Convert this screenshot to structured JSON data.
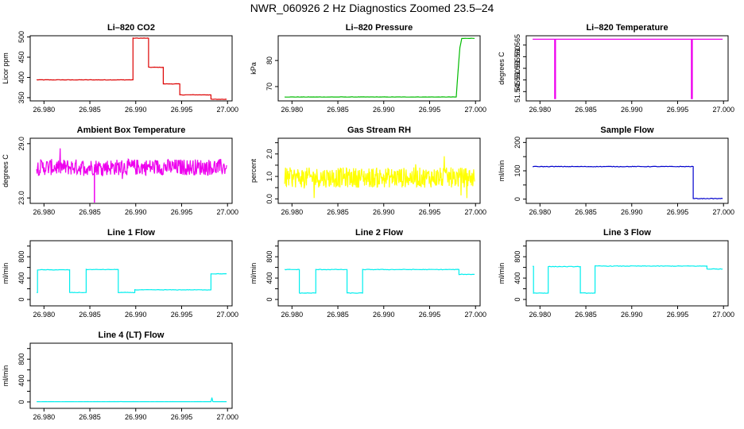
{
  "figure_title": "NWR_060926  2 Hz Diagnostics Zoomed 23.5–24",
  "colors": {
    "red": "#dd0000",
    "green": "#00bb00",
    "magenta": "#ee00ee",
    "yellow": "#ffff00",
    "blue": "#0000cc",
    "cyan": "#00eeee"
  },
  "chart_data": [
    {
      "type": "line",
      "title": "Li–820 CO2",
      "ylabel": "Licor ppm",
      "color": "#dd0000",
      "xlim": [
        26.9785,
        27.0005
      ],
      "ylim": [
        342,
        503
      ],
      "xticks": [
        26.98,
        26.985,
        26.99,
        26.995,
        27.0
      ],
      "xtick_labels": [
        "26.980",
        "26.985",
        "26.990",
        "26.995",
        "27.000"
      ],
      "yticks": [
        350,
        400,
        450,
        500
      ],
      "ytick_labels": [
        "350",
        "400",
        "450",
        "500"
      ],
      "step": true,
      "noise": 1,
      "series": [
        {
          "x": [
            26.9792,
            26.9897,
            26.9914,
            26.993,
            26.9948,
            26.9982,
            26.9999
          ],
          "y": [
            394,
            497,
            425,
            384,
            357,
            346,
            346
          ]
        }
      ]
    },
    {
      "type": "line",
      "title": "Li–820 Pressure",
      "ylabel": "kPa",
      "color": "#00bb00",
      "xlim": [
        26.9785,
        27.0005
      ],
      "ylim": [
        64.5,
        89.5
      ],
      "xticks": [
        26.98,
        26.985,
        26.99,
        26.995,
        27.0
      ],
      "xtick_labels": [
        "26.980",
        "26.985",
        "26.990",
        "26.995",
        "27.000"
      ],
      "yticks": [
        70,
        80
      ],
      "ytick_labels": [
        "70",
        "80"
      ],
      "step": false,
      "noise": 0.1,
      "series": [
        {
          "x": [
            26.9792,
            26.9966,
            26.9979,
            26.9981,
            26.9983,
            26.9985,
            26.9999
          ],
          "y": [
            66,
            66,
            66,
            76,
            85,
            88.5,
            88.5
          ]
        }
      ]
    },
    {
      "type": "line",
      "title": "Li–820 Temperature",
      "ylabel": "degrees C",
      "color": "#ee00ee",
      "xlim": [
        26.9785,
        27.0005
      ],
      "ylim": [
        51.541,
        51.569
      ],
      "xticks": [
        26.98,
        26.985,
        26.99,
        26.995,
        27.0
      ],
      "xtick_labels": [
        "26.980",
        "26.985",
        "26.990",
        "26.995",
        "27.000"
      ],
      "yticks": [
        51.545,
        51.55,
        51.555,
        51.56,
        51.565
      ],
      "ytick_labels": [
        "51.545",
        "51.550",
        "51.555",
        "51.560",
        "51.565"
      ],
      "step": false,
      "noise": 0,
      "series": [
        {
          "x": [
            26.9792,
            26.9816,
            26.9816,
            26.9817,
            26.9817,
            26.9965,
            26.9965,
            26.9966,
            26.9966,
            26.9999
          ],
          "y": [
            51.5675,
            51.5675,
            51.542,
            51.542,
            51.5675,
            51.5675,
            51.542,
            51.542,
            51.5675,
            51.5675
          ]
        }
      ]
    },
    {
      "type": "line",
      "title": "Ambient Box Temperature",
      "ylabel": "degrees C",
      "color": "#ee00ee",
      "xlim": [
        26.9785,
        27.0005
      ],
      "ylim": [
        22.4,
        29.6
      ],
      "xticks": [
        26.98,
        26.985,
        26.99,
        26.995,
        27.0
      ],
      "xtick_labels": [
        "26.980",
        "26.985",
        "26.990",
        "26.995",
        "27.000"
      ],
      "yticks": [
        23.0,
        29.0
      ],
      "ytick_labels": [
        "23.0",
        "29.0"
      ],
      "step": false,
      "noise": 1.8,
      "n_points": 420,
      "series": [
        {
          "x": [
            26.9792,
            26.9999
          ],
          "y": [
            26.4,
            26.4
          ]
        }
      ],
      "spikes": [
        {
          "x": 26.9855,
          "y": 22.4
        }
      ]
    },
    {
      "type": "line",
      "title": "Gas Stream RH",
      "ylabel": "percent",
      "color": "#ffff00",
      "xlim": [
        26.9785,
        27.0005
      ],
      "ylim": [
        -0.2,
        2.7
      ],
      "xticks": [
        26.98,
        26.985,
        26.99,
        26.995,
        27.0
      ],
      "xtick_labels": [
        "26.980",
        "26.985",
        "26.990",
        "26.995",
        "27.000"
      ],
      "yticks": [
        0.0,
        0.5,
        1.0,
        1.5,
        2.0,
        2.5
      ],
      "ytick_labels": [
        "0.0",
        "",
        "1.0",
        "",
        "2.0",
        ""
      ],
      "step": false,
      "noise": 0.9,
      "n_points": 420,
      "series": [
        {
          "x": [
            26.9792,
            26.9999
          ],
          "y": [
            0.95,
            0.95
          ]
        }
      ]
    },
    {
      "type": "line",
      "title": "Sample Flow",
      "ylabel": "ml/min",
      "color": "#0000cc",
      "xlim": [
        26.9785,
        27.0005
      ],
      "ylim": [
        -15,
        215
      ],
      "xticks": [
        26.98,
        26.985,
        26.99,
        26.995,
        27.0
      ],
      "xtick_labels": [
        "26.980",
        "26.985",
        "26.990",
        "26.995",
        "27.000"
      ],
      "yticks": [
        0,
        50,
        100,
        150,
        200
      ],
      "ytick_labels": [
        "0",
        "",
        "100",
        "",
        "200"
      ],
      "step": true,
      "noise": 2,
      "series": [
        {
          "x": [
            26.9792,
            26.9967,
            26.9999
          ],
          "y": [
            115,
            2,
            2
          ]
        }
      ]
    },
    {
      "type": "line",
      "title": "Line 1 Flow",
      "ylabel": "ml/min",
      "color": "#00eeee",
      "xlim": [
        26.9785,
        27.0005
      ],
      "ylim": [
        -120,
        1100
      ],
      "xticks": [
        26.98,
        26.985,
        26.99,
        26.995,
        27.0
      ],
      "xtick_labels": [
        "26.980",
        "26.985",
        "26.990",
        "26.995",
        "27.000"
      ],
      "yticks": [
        0,
        200,
        400,
        600,
        800,
        1000
      ],
      "ytick_labels": [
        "0",
        "",
        "400",
        "",
        "800",
        ""
      ],
      "step": true,
      "noise": 8,
      "series": [
        {
          "x": [
            26.9792,
            26.9793,
            26.9828,
            26.9846,
            26.9881,
            26.9899,
            26.9982,
            26.9999
          ],
          "y": [
            130,
            555,
            130,
            560,
            130,
            180,
            480,
            480
          ]
        }
      ]
    },
    {
      "type": "line",
      "title": "Line 2 Flow",
      "ylabel": "ml/min",
      "color": "#00eeee",
      "xlim": [
        26.9785,
        27.0005
      ],
      "ylim": [
        -120,
        1100
      ],
      "xticks": [
        26.98,
        26.985,
        26.99,
        26.995,
        27.0
      ],
      "xtick_labels": [
        "26.980",
        "26.985",
        "26.990",
        "26.995",
        "27.000"
      ],
      "yticks": [
        0,
        200,
        400,
        600,
        800,
        1000
      ],
      "ytick_labels": [
        "0",
        "",
        "400",
        "",
        "800",
        ""
      ],
      "step": true,
      "noise": 10,
      "series": [
        {
          "x": [
            26.9792,
            26.9808,
            26.9826,
            26.986,
            26.9877,
            26.9982,
            26.9999
          ],
          "y": [
            560,
            120,
            560,
            120,
            560,
            470,
            470
          ]
        }
      ]
    },
    {
      "type": "line",
      "title": "Line 3 Flow",
      "ylabel": "ml/min",
      "color": "#00eeee",
      "xlim": [
        26.9785,
        27.0005
      ],
      "ylim": [
        -120,
        1100
      ],
      "xticks": [
        26.98,
        26.985,
        26.99,
        26.995,
        27.0
      ],
      "xtick_labels": [
        "26.980",
        "26.985",
        "26.990",
        "26.995",
        "27.000"
      ],
      "yticks": [
        0,
        200,
        400,
        600,
        800,
        1000
      ],
      "ytick_labels": [
        "0",
        "",
        "400",
        "",
        "800",
        ""
      ],
      "step": true,
      "noise": 10,
      "series": [
        {
          "x": [
            26.9792,
            26.9793,
            26.9809,
            26.9844,
            26.986,
            26.9982,
            26.9999
          ],
          "y": [
            620,
            120,
            615,
            120,
            625,
            570,
            570
          ]
        }
      ]
    },
    {
      "type": "line",
      "title": "Line 4 (LT) Flow",
      "ylabel": "ml/min",
      "color": "#00eeee",
      "xlim": [
        26.9785,
        27.0005
      ],
      "ylim": [
        -120,
        1100
      ],
      "xticks": [
        26.98,
        26.985,
        26.99,
        26.995,
        27.0
      ],
      "xtick_labels": [
        "26.980",
        "26.985",
        "26.990",
        "26.995",
        "27.000"
      ],
      "yticks": [
        0,
        200,
        400,
        600,
        800,
        1000
      ],
      "ytick_labels": [
        "0",
        "",
        "400",
        "",
        "800",
        ""
      ],
      "step": false,
      "noise": 2,
      "series": [
        {
          "x": [
            26.9792,
            26.9982,
            26.9983,
            26.9984,
            26.9999
          ],
          "y": [
            5,
            5,
            80,
            5,
            5
          ]
        }
      ]
    }
  ]
}
